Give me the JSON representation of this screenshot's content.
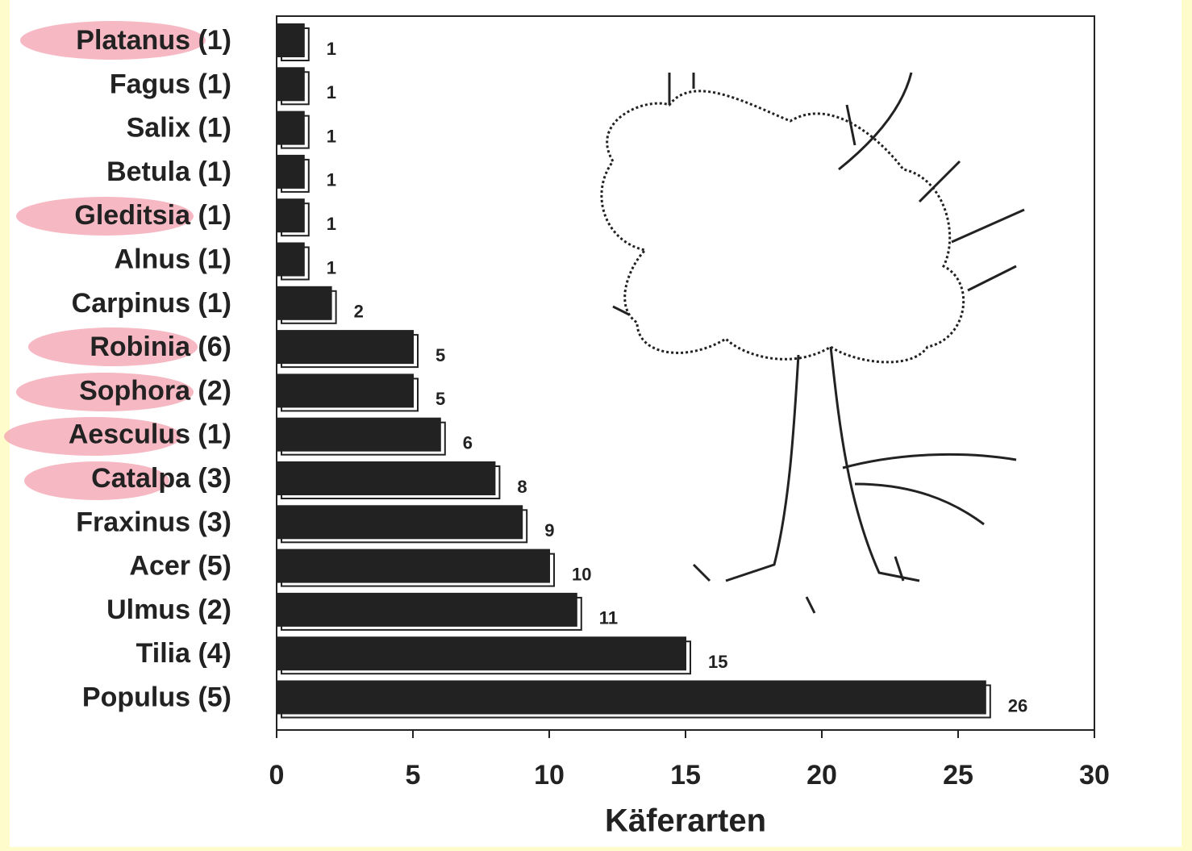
{
  "chart_data": {
    "type": "barh",
    "categories": [
      "Platanus (1)",
      "Fagus (1)",
      "Salix (1)",
      "Betula (1)",
      "Gleditsia (1)",
      "Alnus (1)",
      "Carpinus (1)",
      "Robinia (6)",
      "Sophora (2)",
      "Aesculus (1)",
      "Catalpa (3)",
      "Fraxinus (3)",
      "Acer (5)",
      "Ulmus (2)",
      "Tilia (4)",
      "Populus (5)"
    ],
    "values": [
      1,
      1,
      1,
      1,
      1,
      1,
      2,
      5,
      5,
      6,
      8,
      9,
      10,
      11,
      15,
      26
    ],
    "color": "#222222",
    "xlabel": "Käferarten",
    "xlim": [
      0,
      30
    ],
    "xticks": [
      0,
      5,
      10,
      15,
      20,
      25,
      30
    ]
  }
}
